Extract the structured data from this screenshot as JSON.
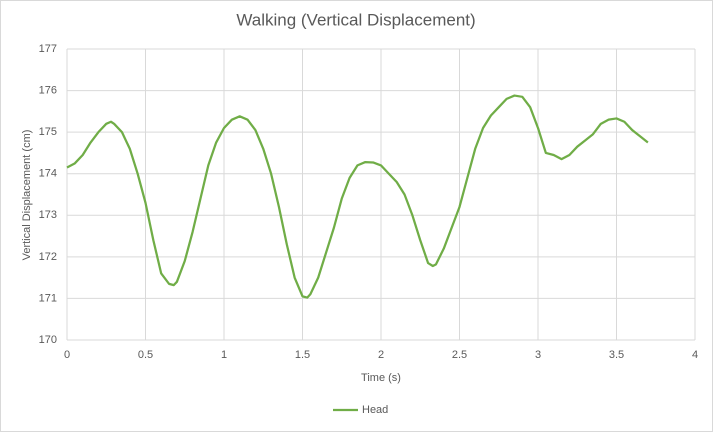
{
  "chart_data": {
    "type": "line",
    "title": "Walking (Vertical Displacement)",
    "x_label": "Time (s)",
    "y_label": "Vertical Displacement (cm)",
    "x": [
      0,
      0.05,
      0.1,
      0.15,
      0.2,
      0.25,
      0.28,
      0.3,
      0.35,
      0.4,
      0.45,
      0.5,
      0.55,
      0.6,
      0.65,
      0.68,
      0.7,
      0.75,
      0.8,
      0.85,
      0.9,
      0.95,
      1.0,
      1.05,
      1.1,
      1.15,
      1.2,
      1.25,
      1.3,
      1.35,
      1.4,
      1.45,
      1.5,
      1.53,
      1.55,
      1.6,
      1.65,
      1.7,
      1.75,
      1.8,
      1.85,
      1.9,
      1.95,
      2.0,
      2.05,
      2.1,
      2.15,
      2.2,
      2.25,
      2.3,
      2.33,
      2.35,
      2.4,
      2.45,
      2.5,
      2.55,
      2.6,
      2.65,
      2.7,
      2.75,
      2.8,
      2.85,
      2.9,
      2.95,
      3.0,
      3.05,
      3.1,
      3.15,
      3.2,
      3.25,
      3.3,
      3.35,
      3.4,
      3.45,
      3.5,
      3.55,
      3.6,
      3.65,
      3.7
    ],
    "series": [
      {
        "name": "Head",
        "color": "#70ad47",
        "values": [
          174.15,
          174.25,
          174.45,
          174.75,
          175.0,
          175.2,
          175.25,
          175.2,
          175.0,
          174.6,
          174.0,
          173.3,
          172.4,
          171.6,
          171.35,
          171.32,
          171.4,
          171.9,
          172.6,
          173.4,
          174.2,
          174.75,
          175.1,
          175.3,
          175.38,
          175.3,
          175.05,
          174.6,
          174.0,
          173.2,
          172.3,
          171.5,
          171.05,
          171.02,
          171.1,
          171.5,
          172.1,
          172.7,
          173.4,
          173.9,
          174.2,
          174.28,
          174.27,
          174.2,
          174.0,
          173.8,
          173.5,
          173.0,
          172.4,
          171.85,
          171.78,
          171.82,
          172.2,
          172.7,
          173.2,
          173.9,
          174.6,
          175.1,
          175.4,
          175.6,
          175.8,
          175.88,
          175.85,
          175.6,
          175.1,
          174.5,
          174.45,
          174.35,
          174.45,
          174.65,
          174.8,
          174.95,
          175.2,
          175.3,
          175.33,
          175.25,
          175.05,
          174.9,
          174.75
        ]
      }
    ],
    "xlim": [
      0,
      4
    ],
    "xticks": [
      0,
      0.5,
      1,
      1.5,
      2,
      2.5,
      3,
      3.5,
      4
    ],
    "ylim": [
      170,
      177
    ],
    "yticks": [
      170,
      171,
      172,
      173,
      174,
      175,
      176,
      177
    ],
    "grid": true,
    "legend": "bottom"
  }
}
